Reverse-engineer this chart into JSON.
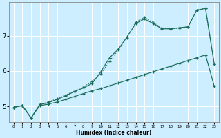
{
  "title": "",
  "xlabel": "Humidex (Indice chaleur)",
  "background_color": "#cceeff",
  "grid_color": "#ffffff",
  "line_color": "#1a6b5a",
  "xlim": [
    -0.5,
    23.5
  ],
  "ylim": [
    4.55,
    7.95
  ],
  "yticks": [
    5,
    6,
    7
  ],
  "xtick_labels": [
    "0",
    "1",
    "2",
    "3",
    "4",
    "5",
    "6",
    "7",
    "8",
    "9",
    "10",
    "11",
    "12",
    "13",
    "14",
    "15",
    "16",
    "17",
    "18",
    "19",
    "20",
    "21",
    "22",
    "23"
  ],
  "line1_x": [
    0,
    1,
    2,
    3,
    4,
    5,
    6,
    7,
    8,
    9,
    10,
    11,
    12,
    13,
    14,
    15,
    16,
    17,
    18,
    19,
    20,
    21,
    22,
    23
  ],
  "line1_y": [
    4.97,
    5.02,
    4.67,
    5.02,
    5.06,
    5.12,
    5.2,
    5.28,
    5.36,
    5.44,
    5.5,
    5.58,
    5.66,
    5.74,
    5.82,
    5.9,
    5.98,
    6.06,
    6.14,
    6.22,
    6.3,
    6.38,
    6.46,
    5.57
  ],
  "line2_x": [
    0,
    1,
    2,
    3,
    4,
    5,
    6,
    7,
    8,
    9,
    10,
    11,
    12,
    13,
    14,
    15,
    16,
    17,
    18,
    19,
    20,
    21,
    22,
    23
  ],
  "line2_y": [
    4.97,
    5.02,
    4.67,
    5.05,
    5.12,
    5.22,
    5.32,
    5.44,
    5.55,
    5.7,
    5.92,
    6.28,
    6.6,
    6.95,
    7.4,
    7.52,
    7.38,
    7.22,
    7.2,
    7.22,
    7.25,
    7.73,
    7.78,
    6.2
  ],
  "line3_x": [
    0,
    1,
    2,
    3,
    4,
    5,
    6,
    7,
    8,
    9,
    10,
    11,
    12,
    13,
    14,
    15,
    16,
    17,
    18,
    19,
    20,
    21,
    22,
    23
  ],
  "line3_y": [
    4.97,
    5.02,
    4.67,
    5.05,
    5.1,
    5.2,
    5.3,
    5.42,
    5.52,
    5.65,
    5.98,
    6.38,
    6.62,
    6.97,
    7.35,
    7.48,
    7.35,
    7.2,
    7.2,
    7.23,
    7.26,
    7.73,
    7.78,
    6.2
  ]
}
